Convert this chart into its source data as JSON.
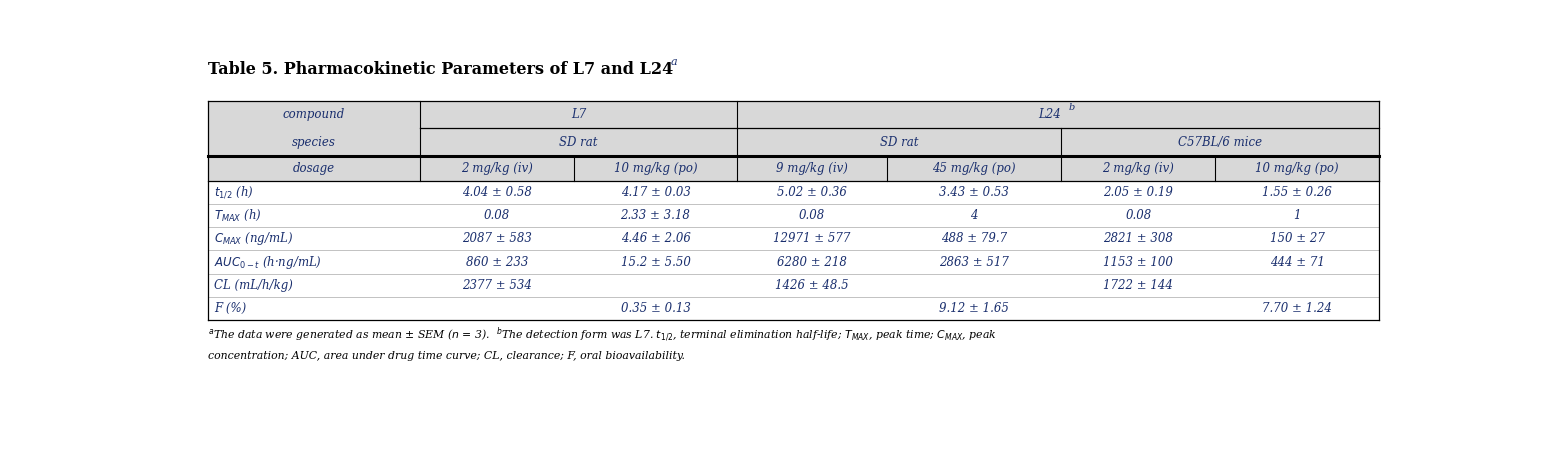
{
  "title": "Table 5. Pharmacokinetic Parameters of L7 and L24",
  "title_super": "a",
  "text_color": "#1a2f6e",
  "header_bg": "#d8d8d8",
  "white_bg": "#ffffff",
  "border_color": "#000000",
  "columns": [
    "dosage",
    "2 mg/kg (iv)",
    "10 mg/kg (po)",
    "9 mg/kg (iv)",
    "45 mg/kg (po)",
    "2 mg/kg (iv)",
    "10 mg/kg (po)"
  ],
  "rows": [
    [
      "4.04 ± 0.58",
      "4.17 ± 0.03",
      "5.02 ± 0.36",
      "3.43 ± 0.53",
      "2.05 ± 0.19",
      "1.55 ± 0.26"
    ],
    [
      "0.08",
      "2.33 ± 3.18",
      "0.08",
      "4",
      "0.08",
      "1"
    ],
    [
      "2087 ± 583",
      "4.46 ± 2.06",
      "12971 ± 577",
      "488 ± 79.7",
      "2821 ± 308",
      "150 ± 27"
    ],
    [
      "860 ± 233",
      "15.2 ± 5.50",
      "6280 ± 218",
      "2863 ± 517",
      "1153 ± 100",
      "444 ± 71"
    ],
    [
      "2377 ± 534",
      "",
      "1426 ± 48.5",
      "",
      "1722 ± 144",
      ""
    ],
    [
      "",
      "0.35 ± 0.13",
      "",
      "9.12 ± 1.65",
      "",
      "7.70 ± 1.24"
    ]
  ],
  "row_labels": [
    "t_{1/2} (h)",
    "T_{MAX} (h)",
    "C_{MAX} (ng/mL)",
    "AUC_{0-t} (h·ng/mL)",
    "CL (mL/h/kg)",
    "F (%)"
  ],
  "footnote_line1": "The data were generated as mean ± SEM (n = 3).",
  "footnote_line2": "The detection form was L7. t_{1/2}, terminal elimination half-life; T_{MAX}, peak time; C_{MAX}, peak",
  "footnote_line3": "concentration; AUC, area under drug time curve; CL, clearance; F, oral bioavailability."
}
